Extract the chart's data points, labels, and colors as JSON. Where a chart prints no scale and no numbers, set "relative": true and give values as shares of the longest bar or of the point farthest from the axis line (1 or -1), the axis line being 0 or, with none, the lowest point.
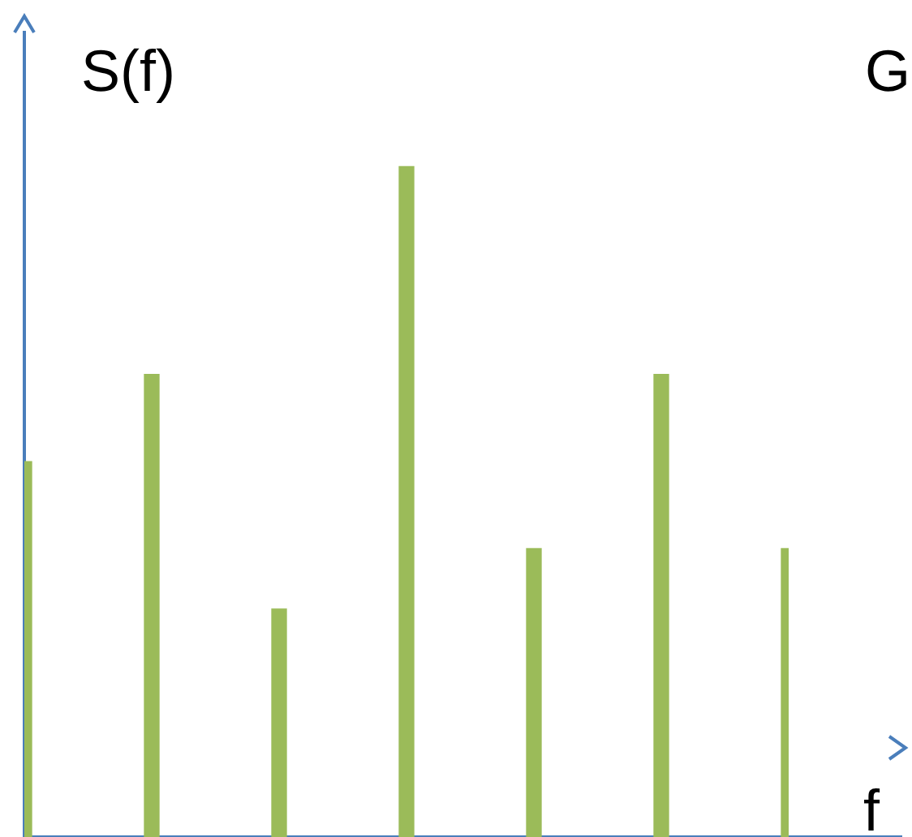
{
  "chart_data": {
    "type": "bar",
    "relative": true,
    "xlabel": "f",
    "ylabel": "S(f)",
    "annotations": [
      "G"
    ],
    "categories": [
      null,
      null,
      null,
      null,
      null,
      null,
      null
    ],
    "values": [
      0.56,
      0.69,
      0.34,
      1,
      0.43,
      0.69,
      0.43
    ],
    "color": "#9bbb59"
  }
}
